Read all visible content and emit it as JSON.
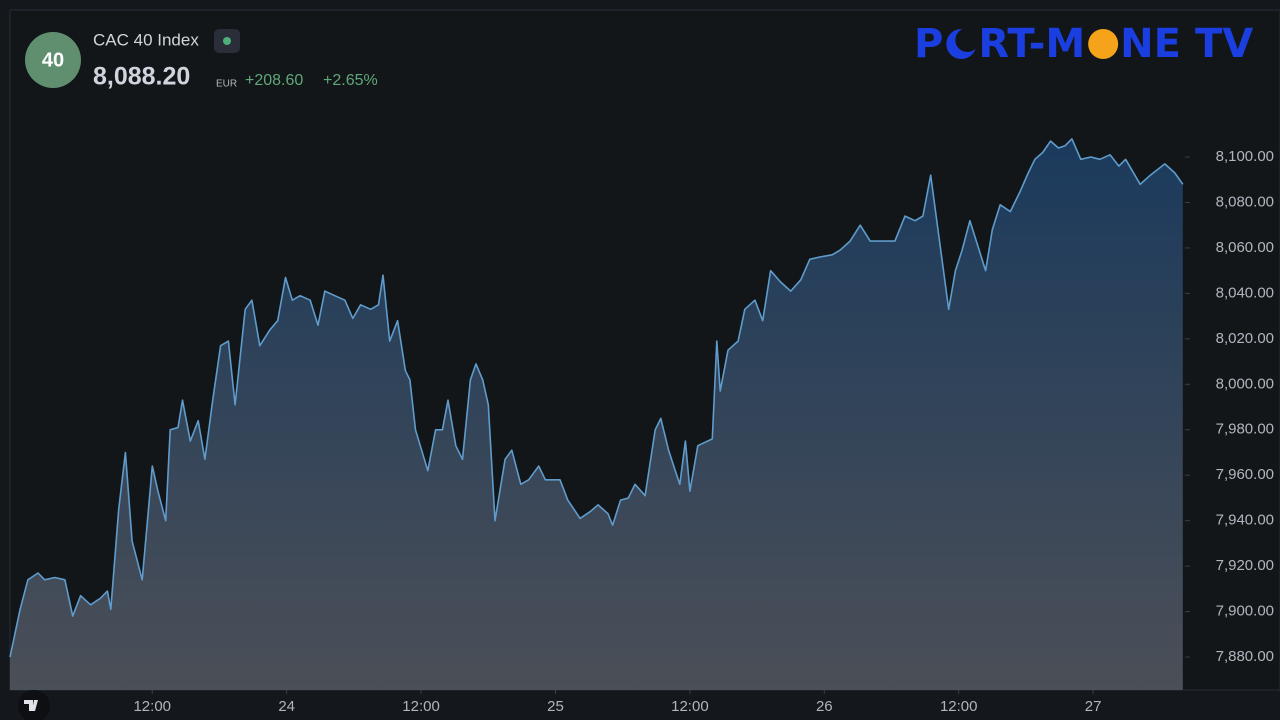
{
  "chart_data": {
    "type": "area",
    "badge": "40",
    "title": "CAC 40 Index",
    "price": "8,088.20",
    "currency": "EUR",
    "change": "+208.60",
    "change_pct": "+2.65%",
    "logo": {
      "a": "P",
      "b": "RT-M",
      "c": "NE",
      "d": "TV"
    },
    "color": "#5f9ccc",
    "x": [
      -0.7,
      0.2,
      0.9,
      1.8,
      2.4,
      3.3,
      4.2,
      4.9,
      5.6,
      6.5,
      7.4,
      8.0,
      8.3,
      9.0,
      9.6,
      10.2,
      11.1,
      12.0,
      12.5,
      13.2,
      13.6,
      14.3,
      14.7,
      15.4,
      16.1,
      16.7,
      17.4,
      18.1,
      18.8,
      19.4,
      20.3,
      20.9,
      21.6,
      22.5,
      23.2,
      23.9,
      24.5,
      25.2,
      26.1,
      26.8,
      27.4,
      28.3,
      29.2,
      29.9,
      30.6,
      31.5,
      32.2,
      32.6,
      33.2,
      33.9,
      34.6,
      35.0,
      35.5,
      36.6,
      37.3,
      37.9,
      38.4,
      39.1,
      39.7,
      40.4,
      40.9,
      41.5,
      42.0,
      42.6,
      43.5,
      44.1,
      44.9,
      45.6,
      46.5,
      47.1,
      48.4,
      49.1,
      50.2,
      51.1,
      51.8,
      52.7,
      53.1,
      53.8,
      54.5,
      55.1,
      56.0,
      56.9,
      57.4,
      58.1,
      58.7,
      59.1,
      59.6,
      60.0,
      60.7,
      62.0,
      62.4,
      62.7,
      63.4,
      64.3,
      64.9,
      65.8,
      66.5,
      67.2,
      68.1,
      69.0,
      69.9,
      70.7,
      71.6,
      72.7,
      73.4,
      74.3,
      75.2,
      76.1,
      77.0,
      78.3,
      79.2,
      80.1,
      80.8,
      81.5,
      82.2,
      83.1,
      83.7,
      84.3,
      85.0,
      85.7,
      86.4,
      87.0,
      87.7,
      88.6,
      89.5,
      90.2,
      90.8,
      91.5,
      92.2,
      92.9,
      93.5,
      94.1,
      94.9,
      95.8,
      96.6,
      97.5,
      98.3,
      98.9,
      100.2,
      101.1,
      102.4,
      103.3,
      104.0
    ],
    "values": [
      7880,
      7901,
      7914,
      7917,
      7914,
      7915,
      7914,
      7898,
      7907,
      7903,
      7906,
      7909,
      7901,
      7945,
      7970,
      7931,
      7914,
      7964,
      7953,
      7940,
      7980,
      7981,
      7993,
      7975,
      7984,
      7967,
      7993,
      8017,
      8019,
      7991,
      8033,
      8037,
      8017,
      8024,
      8028,
      8047,
      8037,
      8039,
      8037,
      8026,
      8041,
      8039,
      8037,
      8029,
      8035,
      8033,
      8035,
      8048,
      8019,
      8028,
      8006,
      8002,
      7980,
      7962,
      7980,
      7980,
      7993,
      7973,
      7967,
      8002,
      8009,
      8002,
      7991,
      7940,
      7967,
      7971,
      7956,
      7958,
      7964,
      7958,
      7958,
      7949,
      7941,
      7944,
      7947,
      7943,
      7938,
      7949,
      7950,
      7956,
      7951,
      7980,
      7985,
      7971,
      7962,
      7956,
      7975,
      7953,
      7973,
      7976,
      8019,
      7997,
      8015,
      8019,
      8033,
      8037,
      8028,
      8050,
      8045,
      8041,
      8046,
      8055,
      8056,
      8057,
      8059,
      8063,
      8070,
      8063,
      8063,
      8063,
      8074,
      8072,
      8074,
      8092,
      8066,
      8033,
      8050,
      8059,
      8072,
      8061,
      8050,
      8068,
      8079,
      8076,
      8085,
      8093,
      8099,
      8102,
      8107,
      8104,
      8105,
      8108,
      8099,
      8100,
      8099,
      8101,
      8096,
      8099,
      8088,
      8092,
      8097,
      8093,
      8088
    ],
    "xlim": [
      -0.7,
      104.2
    ],
    "ylim": [
      7865.5,
      8164.7
    ],
    "xticks": [
      {
        "value": 12,
        "label": "12:00"
      },
      {
        "value": 24,
        "label": "24"
      },
      {
        "value": 36,
        "label": "12:00"
      },
      {
        "value": 48,
        "label": "25"
      },
      {
        "value": 60,
        "label": "12:00"
      },
      {
        "value": 72,
        "label": "26"
      },
      {
        "value": 84,
        "label": "12:00"
      },
      {
        "value": 96,
        "label": "27"
      }
    ],
    "yticks": [
      {
        "value": 7880,
        "label": "7,880.00"
      },
      {
        "value": 7900,
        "label": "7,900.00"
      },
      {
        "value": 7920,
        "label": "7,920.00"
      },
      {
        "value": 7940,
        "label": "7,940.00"
      },
      {
        "value": 7960,
        "label": "7,960.00"
      },
      {
        "value": 7980,
        "label": "7,980.00"
      },
      {
        "value": 8000,
        "label": "8,000.00"
      },
      {
        "value": 8020,
        "label": "8,020.00"
      },
      {
        "value": 8040,
        "label": "8,040.00"
      },
      {
        "value": 8060,
        "label": "8,060.00"
      },
      {
        "value": 8080,
        "label": "8,080.00"
      },
      {
        "value": 8100,
        "label": "8,100.00"
      }
    ],
    "grid": false
  }
}
